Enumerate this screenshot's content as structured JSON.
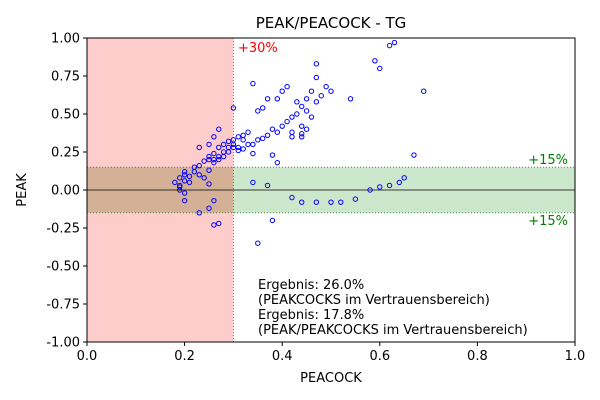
{
  "chart_data": {
    "type": "scatter",
    "title": "PEAK/PEACOCK - TG",
    "xlabel": "PEACOCK",
    "ylabel": "PEAK",
    "xlim": [
      0.0,
      1.0
    ],
    "ylim": [
      -1.0,
      1.0
    ],
    "xticks": [
      "0.0",
      "0.2",
      "0.4",
      "0.6",
      "0.8",
      "1.0"
    ],
    "yticks": [
      "-1.00",
      "-0.75",
      "-0.50",
      "-0.25",
      "0.00",
      "0.25",
      "0.50",
      "0.75",
      "1.00"
    ],
    "grid": false,
    "regions": {
      "red_band": {
        "x_from": 0.0,
        "x_to": 0.3,
        "color": "#ffcccc",
        "label": "+30%",
        "label_color": "#ff0000"
      },
      "green_band": {
        "y_from": -0.15,
        "y_to": 0.15,
        "color": "#cce8cc",
        "label_upper": "+15%",
        "label_lower": "+15%",
        "label_color": "#008000"
      }
    },
    "results": [
      "Ergebnis: 26.0%",
      "(PEAKCOCKS im Vertrauensbereich)",
      "Ergebnis: 17.8%",
      "(PEAK/PEAKCOCKS im Vertrauensbereich)"
    ],
    "marker_color": "#0000ff",
    "points": [
      [
        0.18,
        0.05
      ],
      [
        0.19,
        0.08
      ],
      [
        0.19,
        0.03
      ],
      [
        0.19,
        0.0
      ],
      [
        0.2,
        0.1
      ],
      [
        0.2,
        0.06
      ],
      [
        0.2,
        0.12
      ],
      [
        0.2,
        -0.02
      ],
      [
        0.2,
        -0.07
      ],
      [
        0.19,
        0.02
      ],
      [
        0.21,
        0.09
      ],
      [
        0.21,
        0.05
      ],
      [
        0.22,
        0.12
      ],
      [
        0.22,
        0.15
      ],
      [
        0.23,
        0.16
      ],
      [
        0.23,
        0.1
      ],
      [
        0.24,
        0.19
      ],
      [
        0.24,
        0.08
      ],
      [
        0.25,
        0.2
      ],
      [
        0.25,
        0.22
      ],
      [
        0.25,
        0.13
      ],
      [
        0.25,
        0.04
      ],
      [
        0.26,
        0.24
      ],
      [
        0.26,
        0.18
      ],
      [
        0.26,
        0.2
      ],
      [
        0.27,
        0.28
      ],
      [
        0.27,
        0.22
      ],
      [
        0.27,
        0.2
      ],
      [
        0.28,
        0.25
      ],
      [
        0.28,
        0.3
      ],
      [
        0.28,
        0.22
      ],
      [
        0.29,
        0.32
      ],
      [
        0.29,
        0.28
      ],
      [
        0.29,
        0.25
      ],
      [
        0.3,
        0.33
      ],
      [
        0.3,
        0.3
      ],
      [
        0.3,
        0.28
      ],
      [
        0.31,
        0.35
      ],
      [
        0.31,
        0.28
      ],
      [
        0.31,
        0.26
      ],
      [
        0.32,
        0.33
      ],
      [
        0.32,
        0.36
      ],
      [
        0.33,
        0.38
      ],
      [
        0.33,
        0.3
      ],
      [
        0.34,
        0.3
      ],
      [
        0.35,
        0.33
      ],
      [
        0.36,
        0.34
      ],
      [
        0.37,
        0.36
      ],
      [
        0.38,
        0.4
      ],
      [
        0.39,
        0.38
      ],
      [
        0.4,
        0.42
      ],
      [
        0.41,
        0.45
      ],
      [
        0.42,
        0.48
      ],
      [
        0.43,
        0.5
      ],
      [
        0.44,
        0.55
      ],
      [
        0.45,
        0.6
      ],
      [
        0.46,
        0.65
      ],
      [
        0.47,
        0.58
      ],
      [
        0.48,
        0.62
      ],
      [
        0.49,
        0.68
      ],
      [
        0.5,
        0.65
      ],
      [
        0.42,
        0.38
      ],
      [
        0.44,
        0.42
      ],
      [
        0.45,
        0.52
      ],
      [
        0.46,
        0.48
      ],
      [
        0.47,
        0.74
      ],
      [
        0.47,
        0.83
      ],
      [
        0.62,
        0.95
      ],
      [
        0.63,
        0.97
      ],
      [
        0.59,
        0.85
      ],
      [
        0.6,
        0.8
      ],
      [
        0.69,
        0.65
      ],
      [
        0.54,
        0.6
      ],
      [
        0.36,
        0.54
      ],
      [
        0.35,
        0.52
      ],
      [
        0.37,
        0.6
      ],
      [
        0.39,
        0.6
      ],
      [
        0.4,
        0.65
      ],
      [
        0.41,
        0.68
      ],
      [
        0.43,
        0.58
      ],
      [
        0.44,
        0.35
      ],
      [
        0.44,
        0.37
      ],
      [
        0.45,
        0.4
      ],
      [
        0.42,
        0.35
      ],
      [
        0.38,
        0.23
      ],
      [
        0.39,
        0.18
      ],
      [
        0.34,
        0.7
      ],
      [
        0.3,
        0.54
      ],
      [
        0.27,
        0.4
      ],
      [
        0.26,
        0.35
      ],
      [
        0.23,
        0.28
      ],
      [
        0.25,
        0.3
      ],
      [
        0.32,
        0.27
      ],
      [
        0.34,
        0.24
      ],
      [
        0.23,
        -0.15
      ],
      [
        0.25,
        -0.12
      ],
      [
        0.26,
        -0.07
      ],
      [
        0.26,
        -0.23
      ],
      [
        0.27,
        -0.22
      ],
      [
        0.35,
        -0.35
      ],
      [
        0.38,
        -0.2
      ],
      [
        0.34,
        0.05
      ],
      [
        0.37,
        0.03
      ],
      [
        0.42,
        -0.05
      ],
      [
        0.44,
        -0.08
      ],
      [
        0.47,
        -0.08
      ],
      [
        0.5,
        -0.08
      ],
      [
        0.52,
        -0.08
      ],
      [
        0.55,
        -0.06
      ],
      [
        0.58,
        0.0
      ],
      [
        0.6,
        0.02
      ],
      [
        0.62,
        0.03
      ],
      [
        0.64,
        0.05
      ],
      [
        0.65,
        0.08
      ],
      [
        0.67,
        0.23
      ]
    ]
  }
}
